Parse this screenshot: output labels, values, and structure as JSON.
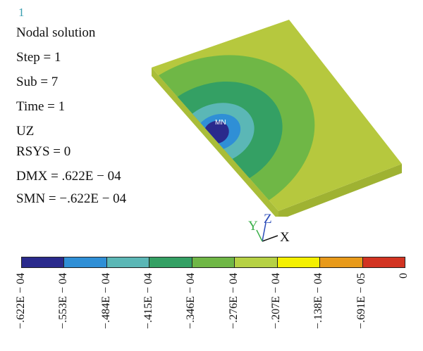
{
  "plot_number": "1",
  "info": {
    "title": "Nodal solution",
    "step": "Step = 1",
    "sub": "Sub = 7",
    "time": "Time = 1",
    "component": "UZ",
    "rsys": "RSYS = 0",
    "dmx": "DMX = .622E − 04",
    "smn": "SMN = −.622E − 04"
  },
  "min_marker": "MN",
  "axes": {
    "x": "X",
    "y": "Y",
    "z": "Z"
  },
  "legend": {
    "colors": [
      "#2a2a8c",
      "#2f8fd6",
      "#5bb7b6",
      "#34a064",
      "#6fb746",
      "#b6d144",
      "#f4f000",
      "#e89a1a",
      "#d23422"
    ],
    "labels": [
      "−.622E − 04",
      "−.553E − 04",
      "−.484E − 04",
      "−.415E − 04",
      "−.346E − 04",
      "−.276E − 04",
      "−.207E − 04",
      "−.138E − 04",
      "−.691E − 05",
      "0"
    ]
  },
  "colors": {
    "plate_top": "#b6c83e",
    "plate_front": "#9fb232",
    "plate_side": "#a9bd38",
    "band_2": "#6fb746",
    "band_3": "#34a064",
    "band_4": "#5bb7b6",
    "band_5": "#2f8fd6",
    "band_6": "#2a2a8c"
  }
}
